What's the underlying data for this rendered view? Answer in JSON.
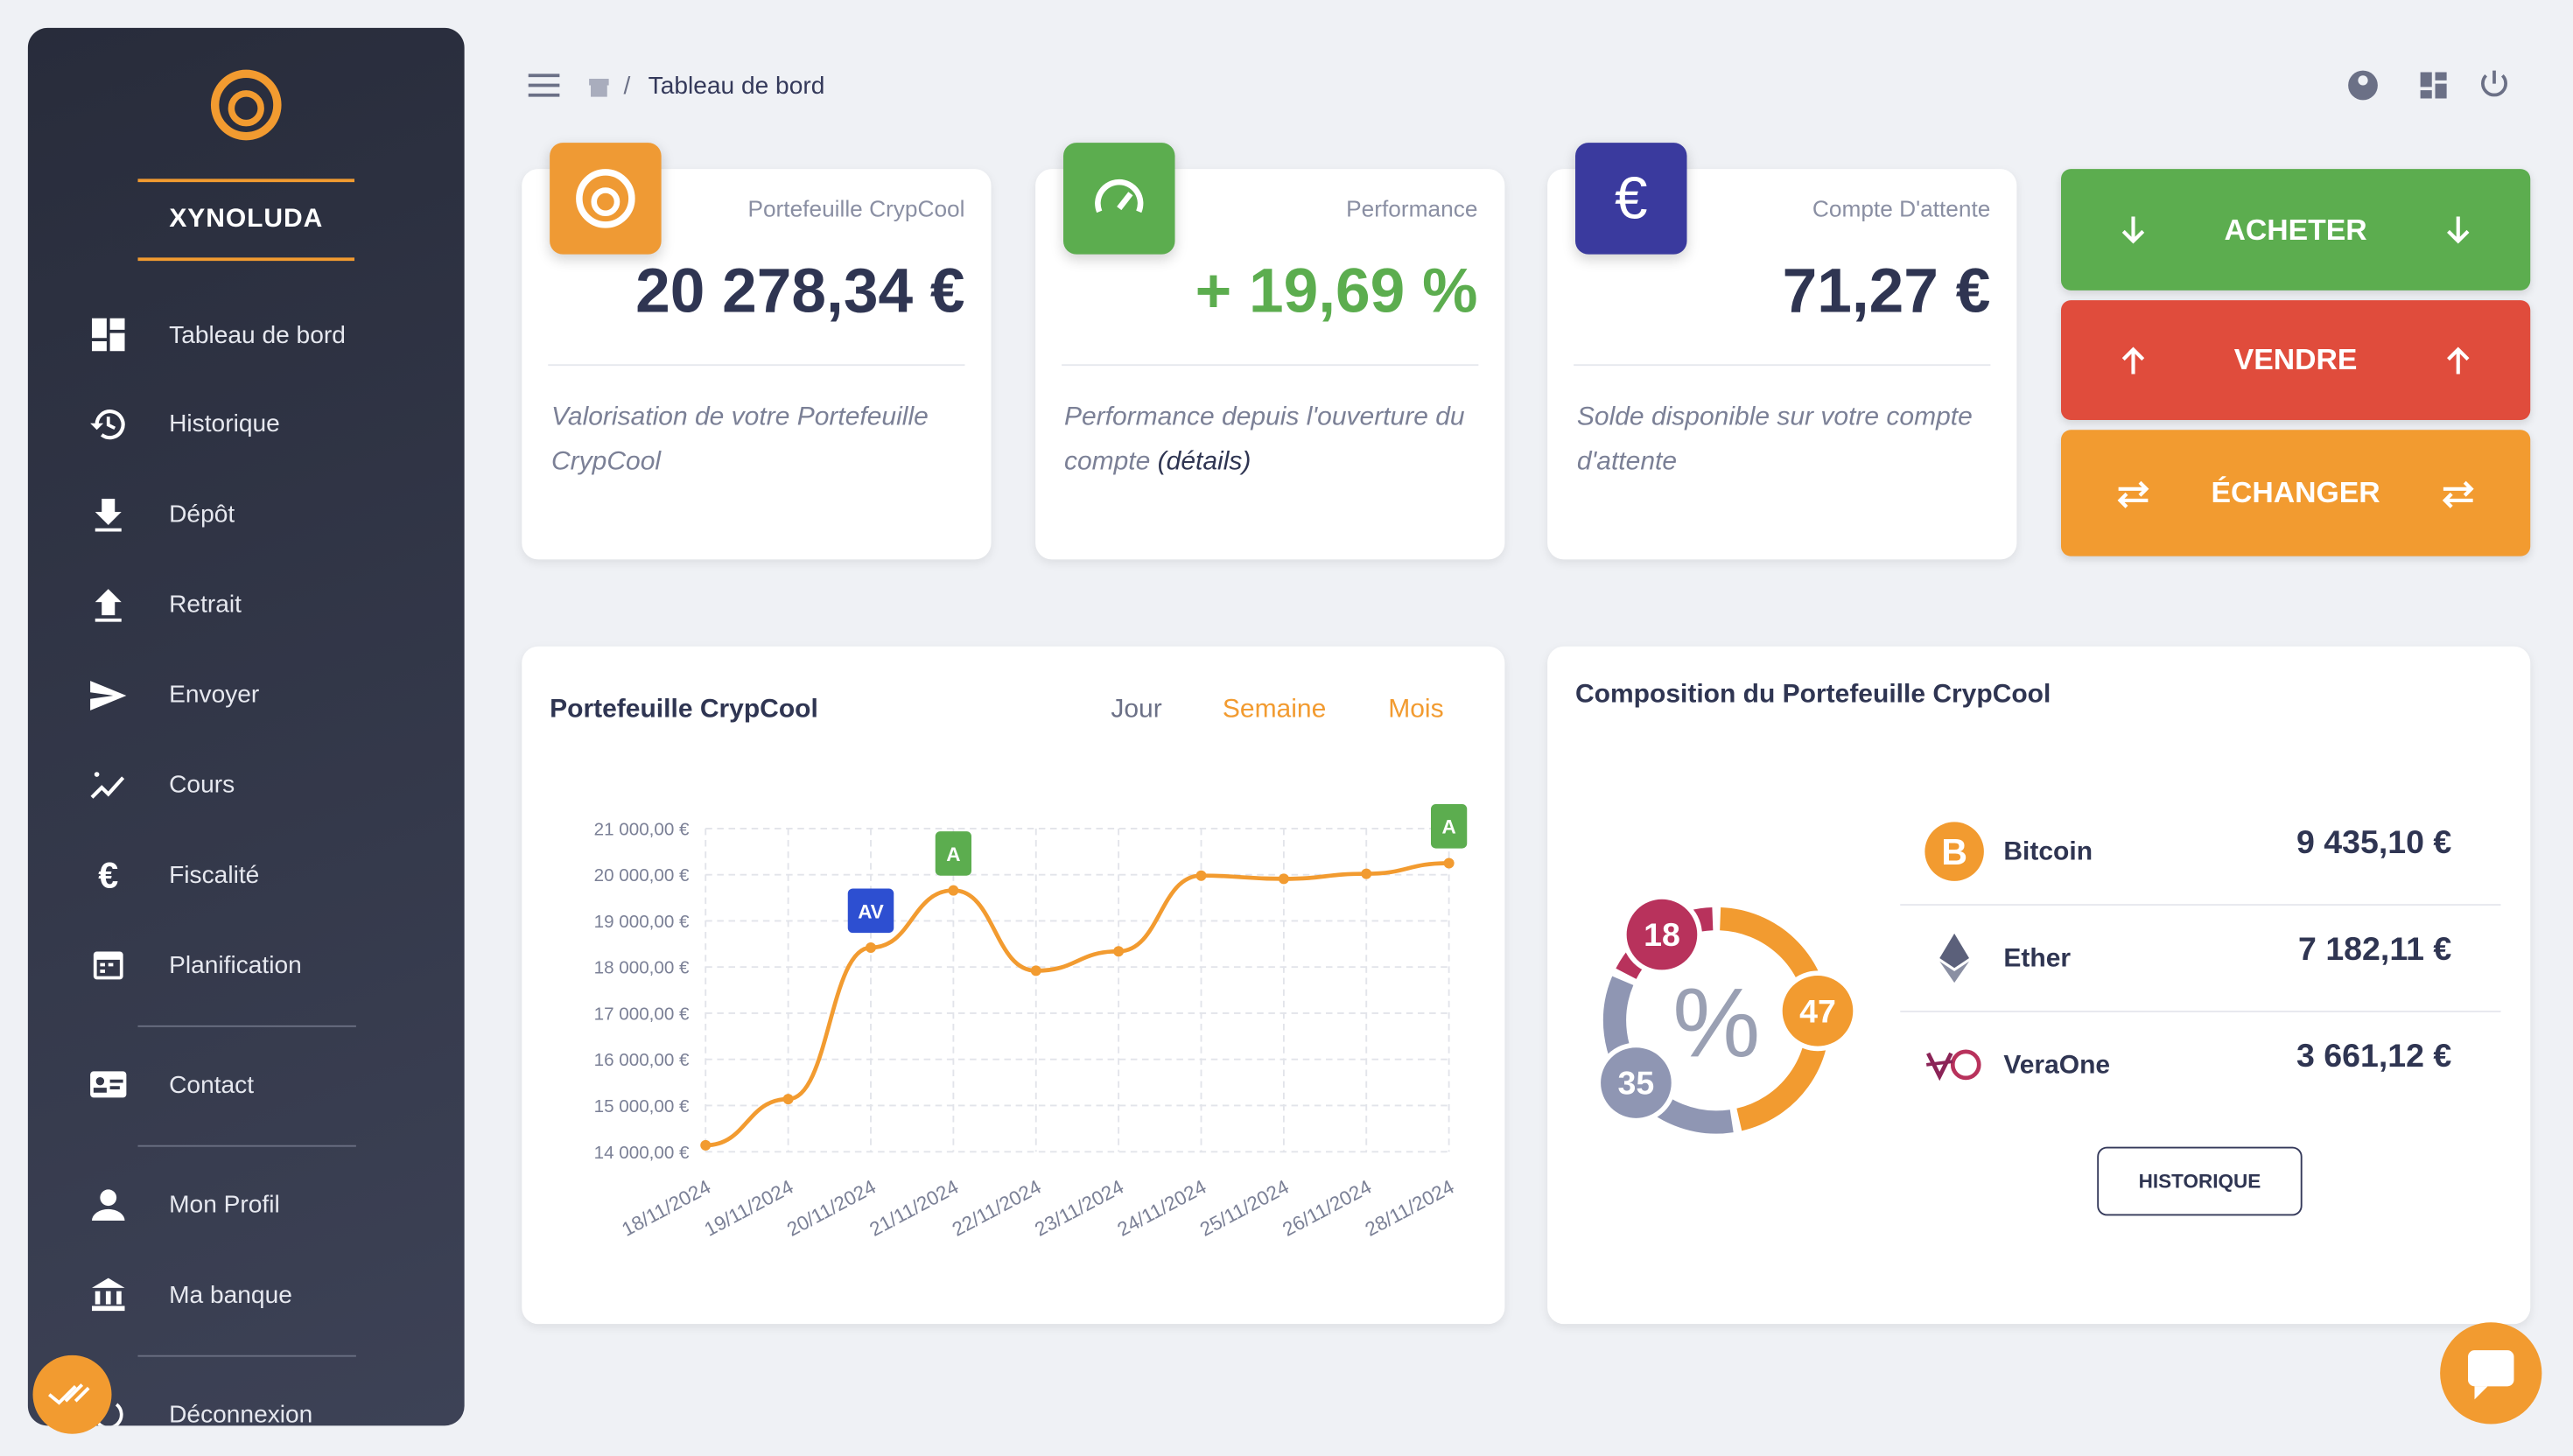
{
  "brand": "XYNOLUDA",
  "menu": [
    "Tableau de bord",
    "Historique",
    "Dépôt",
    "Retrait",
    "Envoyer",
    "Cours",
    "Fiscalité",
    "Planification"
  ],
  "menu_contact": "Contact",
  "menu_account": [
    "Mon Profil",
    "Ma banque"
  ],
  "menu_logout": "Déconnexion",
  "breadcrumb": {
    "separator": "/",
    "current": "Tableau de bord"
  },
  "cards": [
    {
      "title": "Portefeuille CrypCool",
      "value": "20 278,34 €",
      "description": "Valorisation de votre Portefeuille CrypCool",
      "icon_color": "#ef9a34"
    },
    {
      "title": "Performance",
      "value": "+ 19,69 %",
      "description": "Performance depuis l'ouverture du compte",
      "link": "(détails)",
      "icon_color": "#5cad4f"
    },
    {
      "title": "Compte D'attente",
      "value": "71,27 €",
      "description": "Solde disponible sur votre compte d'attente",
      "icon_color": "#3a3a9e",
      "icon": "€"
    }
  ],
  "actions": [
    {
      "label": "ACHETER",
      "color": "#5cad4f"
    },
    {
      "label": "VENDRE",
      "color": "#e04c3c"
    },
    {
      "label": "ÉCHANGER",
      "color": "#f29b30"
    }
  ],
  "chart_data": [
    {
      "type": "line",
      "title": "Portefeuille CrypCool",
      "tabs": [
        "Jour",
        "Semaine",
        "Mois"
      ],
      "categories": [
        "18/11/2024",
        "19/11/2024",
        "20/11/2024",
        "21/11/2024",
        "22/11/2024",
        "23/11/2024",
        "24/11/2024",
        "25/11/2024",
        "26/11/2024",
        "28/11/2024"
      ],
      "values": [
        14140,
        15140,
        18420,
        19660,
        17920,
        18340,
        19980,
        19910,
        20020,
        20250
      ],
      "color": "#f29b30",
      "ylim": [
        14000,
        21000
      ],
      "yticks": [
        {
          "value": 14000,
          "label": "14 000,00 €"
        },
        {
          "value": 15000,
          "label": "15 000,00 €"
        },
        {
          "value": 16000,
          "label": "16 000,00 €"
        },
        {
          "value": 17000,
          "label": "17 000,00 €"
        },
        {
          "value": 18000,
          "label": "18 000,00 €"
        },
        {
          "value": 19000,
          "label": "19 000,00 €"
        },
        {
          "value": 20000,
          "label": "20 000,00 €"
        },
        {
          "value": 21000,
          "label": "21 000,00 €"
        }
      ],
      "grid": true,
      "annotations": [
        {
          "x": "20/11/2024",
          "label": "AV",
          "color": "#2d4fd1"
        },
        {
          "x": "21/11/2024",
          "label": "A",
          "color": "#5cad4f"
        },
        {
          "x": "28/11/2024",
          "label": "A",
          "color": "#5cad4f"
        }
      ]
    },
    {
      "type": "pie",
      "title": "Composition du Portefeuille CrypCool",
      "center_label": "%",
      "values": [
        47,
        35,
        18
      ],
      "colors": [
        "#f29b30",
        "#8f96b3",
        "#b8325c"
      ]
    }
  ],
  "holdings": [
    {
      "name": "Bitcoin",
      "amount": "9 435,10 €"
    },
    {
      "name": "Ether",
      "amount": "7 182,11 €"
    },
    {
      "name": "VeraOne",
      "amount": "3 661,12 €"
    }
  ],
  "history_button": "HISTORIQUE"
}
